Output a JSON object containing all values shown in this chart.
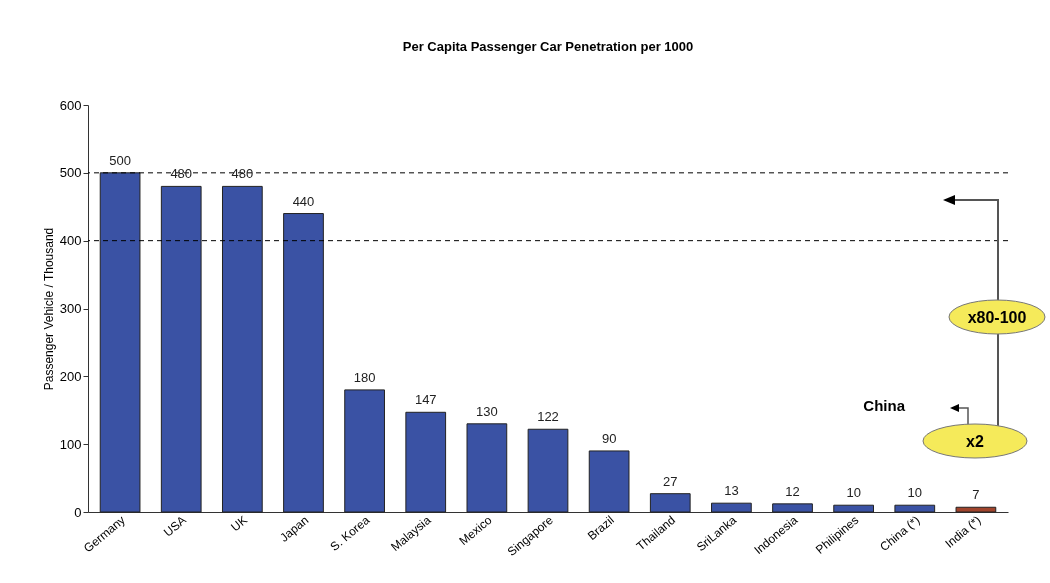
{
  "chart_data": {
    "type": "bar",
    "title": "Per Capita Passenger Car Penetration per 1000",
    "ylabel": "Passenger Vehicle / Thousand",
    "categories": [
      "Germany",
      "USA",
      "UK",
      "Japan",
      "S. Korea",
      "Malaysia",
      "Mexico",
      "Singapore",
      "Brazil",
      "Thailand",
      "SriLanka",
      "Indonesia",
      "Philipines",
      "China (*)",
      "India (*)"
    ],
    "values": [
      500,
      480,
      480,
      440,
      180,
      147,
      130,
      122,
      90,
      27,
      13,
      12,
      10,
      10,
      7
    ],
    "colors": [
      "#3a52a4",
      "#3a52a4",
      "#3a52a4",
      "#3a52a4",
      "#3a52a4",
      "#3a52a4",
      "#3a52a4",
      "#3a52a4",
      "#3a52a4",
      "#3a52a4",
      "#3a52a4",
      "#3a52a4",
      "#3a52a4",
      "#3a52a4",
      "#a0442c"
    ],
    "ylim": [
      0,
      600
    ],
    "yticks": [
      0,
      100,
      200,
      300,
      400,
      500,
      600
    ],
    "grid": false,
    "data_labels": true,
    "ref_lines": [
      {
        "axis": "y",
        "value": 500,
        "line_style": "dashed",
        "color": "#000000"
      },
      {
        "axis": "y",
        "value": 400,
        "line_style": "dashed",
        "color": "#000000"
      }
    ],
    "annotations": [
      "x80-100",
      "x2",
      "China"
    ]
  }
}
